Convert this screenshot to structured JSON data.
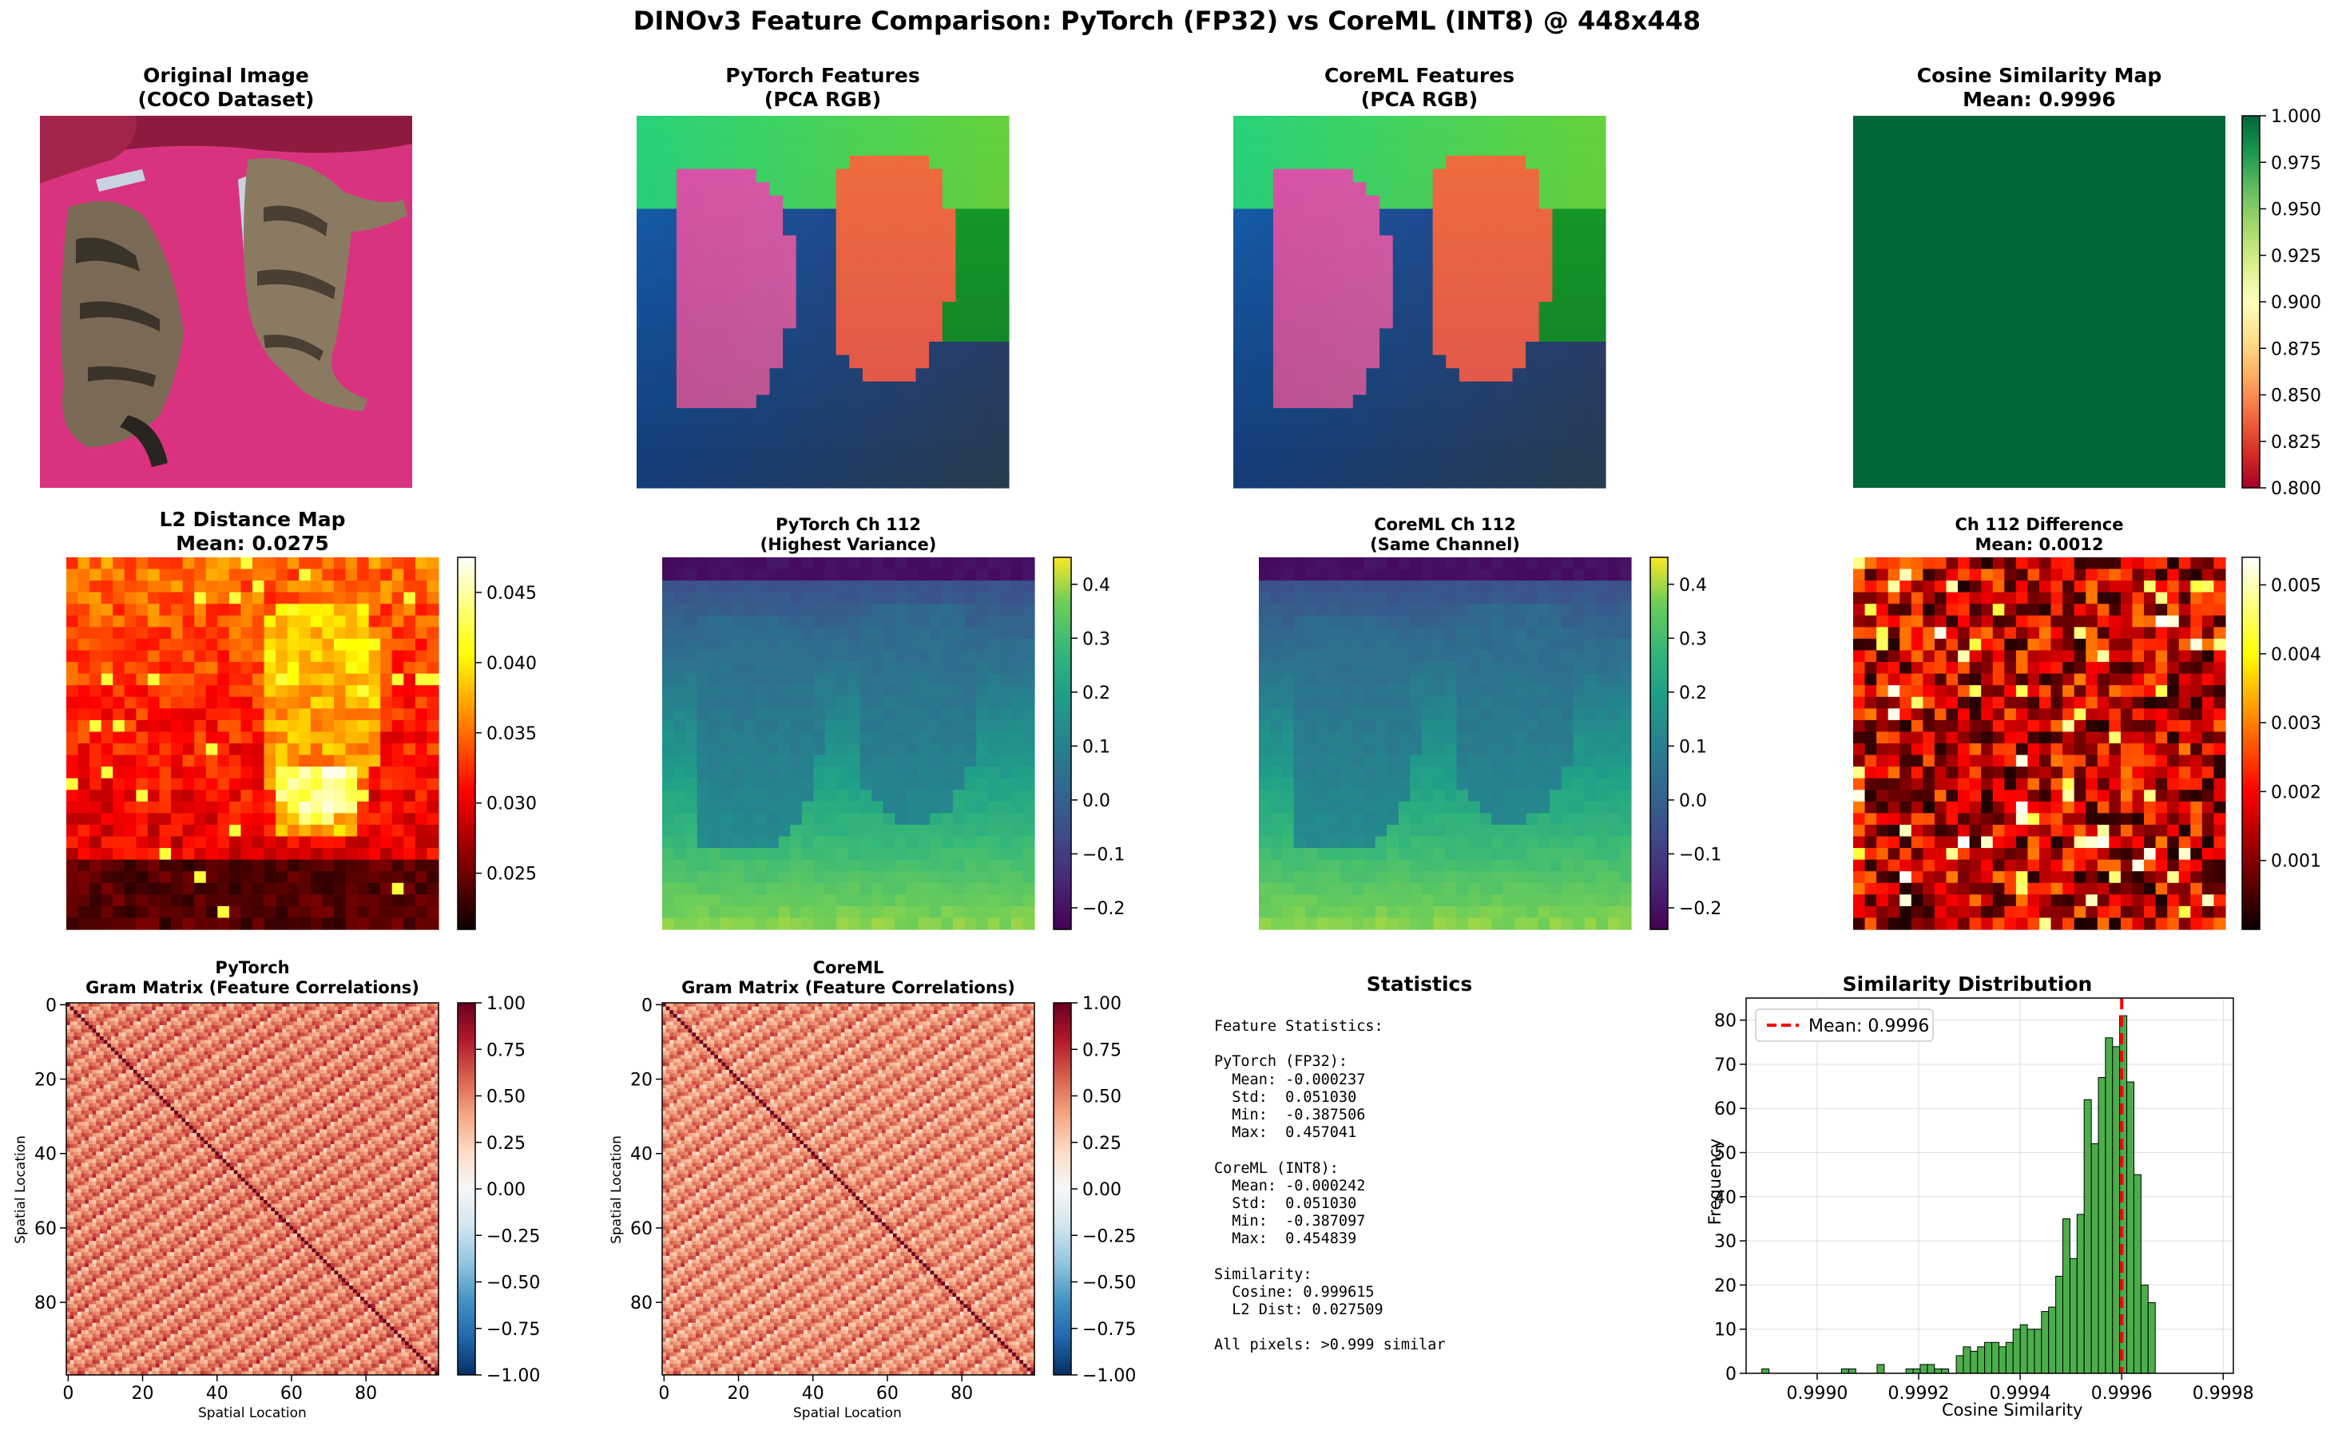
{
  "figure": {
    "title": "DINOv3 Feature Comparison: PyTorch (FP32) vs CoreML (INT8) @ 448x448"
  },
  "panels": {
    "original": {
      "title": "Original Image\n(COCO Dataset)"
    },
    "pytorch_pca": {
      "title": "PyTorch Features\n(PCA RGB)"
    },
    "coreml_pca": {
      "title": "CoreML Features\n(PCA RGB)"
    },
    "cosine_map": {
      "title": "Cosine Similarity Map\nMean: 0.9996",
      "colorbar": {
        "min": 0.8,
        "max": 1.0,
        "ticks": [
          "1.000",
          "0.975",
          "0.950",
          "0.925",
          "0.900",
          "0.875",
          "0.850",
          "0.825",
          "0.800"
        ]
      }
    },
    "l2_map": {
      "title": "L2 Distance Map\nMean: 0.0275",
      "colorbar": {
        "min": 0.021,
        "max": 0.0475,
        "ticks": [
          "0.045",
          "0.040",
          "0.035",
          "0.030",
          "0.025"
        ]
      }
    },
    "pytorch_ch": {
      "title": "PyTorch Ch 112\n(Highest Variance)",
      "colorbar": {
        "min": -0.24,
        "max": 0.45,
        "ticks": [
          "0.4",
          "0.3",
          "0.2",
          "0.1",
          "0.0",
          "−0.1",
          "−0.2"
        ]
      }
    },
    "coreml_ch": {
      "title": "CoreML Ch 112\n(Same Channel)",
      "colorbar": {
        "min": -0.24,
        "max": 0.45,
        "ticks": [
          "0.4",
          "0.3",
          "0.2",
          "0.1",
          "0.0",
          "−0.1",
          "−0.2"
        ]
      }
    },
    "ch_diff": {
      "title": "Ch 112 Difference\nMean: 0.0012",
      "colorbar": {
        "min": 0.0,
        "max": 0.0054,
        "ticks": [
          "0.005",
          "0.004",
          "0.003",
          "0.002",
          "0.001"
        ]
      }
    },
    "gram_pytorch": {
      "title": "PyTorch\nGram Matrix (Feature Correlations)",
      "xlabel": "Spatial Location",
      "ylabel": "Spatial Location",
      "ticks": [
        "0",
        "20",
        "40",
        "60",
        "80"
      ],
      "colorbar": {
        "ticks": [
          "1.00",
          "0.75",
          "0.50",
          "0.25",
          "0.00",
          "−0.25",
          "−0.50",
          "−0.75",
          "−1.00"
        ]
      }
    },
    "gram_coreml": {
      "title": "CoreML\nGram Matrix (Feature Correlations)",
      "xlabel": "Spatial Location",
      "ylabel": "Spatial Location",
      "ticks": [
        "0",
        "20",
        "40",
        "60",
        "80"
      ],
      "colorbar": {
        "ticks": [
          "1.00",
          "0.75",
          "0.50",
          "0.25",
          "0.00",
          "−0.25",
          "−0.50",
          "−0.75",
          "−1.00"
        ]
      }
    },
    "statistics": {
      "title": "Statistics",
      "text": "Feature Statistics:\n\nPyTorch (FP32):\n  Mean: -0.000237\n  Std:  0.051030\n  Min:  -0.387506\n  Max:  0.457041\n\nCoreML (INT8):\n  Mean: -0.000242\n  Std:  0.051030\n  Min:  -0.387097\n  Max:  0.454839\n\nSimilarity:\n  Cosine: 0.999615\n  L2 Dist: 0.027509\n\nAll pixels: >0.999 similar"
    }
  },
  "chart_data": {
    "type": "bar",
    "title": "Similarity Distribution",
    "xlabel": "Cosine Similarity",
    "ylabel": "Frequency",
    "xlim": [
      0.99886,
      0.99982
    ],
    "ylim": [
      0,
      85
    ],
    "xticks": [
      "0.9990",
      "0.9992",
      "0.9994",
      "0.9996",
      "0.9998"
    ],
    "xtick_values": [
      0.999,
      0.9992,
      0.9994,
      0.9996,
      0.9998
    ],
    "yticks": [
      0,
      10,
      20,
      30,
      40,
      50,
      60,
      70,
      80
    ],
    "bar_color": "#2ca02c",
    "mean_line": {
      "value": 0.9996,
      "label": "Mean: 0.9996",
      "color": "#ff0000"
    },
    "legend_position": "upper left",
    "grid": true,
    "bins": [
      {
        "x": 0.998891,
        "count": 1
      },
      {
        "x": 0.999048,
        "count": 1
      },
      {
        "x": 0.999062,
        "count": 1
      },
      {
        "x": 0.999118,
        "count": 2
      },
      {
        "x": 0.999175,
        "count": 1
      },
      {
        "x": 0.999189,
        "count": 1
      },
      {
        "x": 0.999203,
        "count": 2
      },
      {
        "x": 0.999217,
        "count": 2
      },
      {
        "x": 0.999231,
        "count": 1
      },
      {
        "x": 0.999245,
        "count": 1
      },
      {
        "x": 0.999274,
        "count": 4
      },
      {
        "x": 0.999288,
        "count": 6
      },
      {
        "x": 0.999302,
        "count": 5
      },
      {
        "x": 0.999316,
        "count": 6
      },
      {
        "x": 0.99933,
        "count": 7
      },
      {
        "x": 0.999344,
        "count": 7
      },
      {
        "x": 0.999358,
        "count": 6
      },
      {
        "x": 0.999372,
        "count": 7
      },
      {
        "x": 0.999386,
        "count": 10
      },
      {
        "x": 0.9994,
        "count": 11
      },
      {
        "x": 0.999414,
        "count": 10
      },
      {
        "x": 0.999428,
        "count": 10
      },
      {
        "x": 0.999442,
        "count": 14
      },
      {
        "x": 0.999456,
        "count": 15
      },
      {
        "x": 0.99947,
        "count": 22
      },
      {
        "x": 0.999484,
        "count": 35
      },
      {
        "x": 0.999498,
        "count": 26
      },
      {
        "x": 0.999512,
        "count": 36
      },
      {
        "x": 0.999526,
        "count": 62
      },
      {
        "x": 0.99954,
        "count": 52
      },
      {
        "x": 0.999554,
        "count": 67
      },
      {
        "x": 0.999568,
        "count": 76
      },
      {
        "x": 0.999582,
        "count": 74
      },
      {
        "x": 0.999596,
        "count": 81
      },
      {
        "x": 0.99961,
        "count": 66
      },
      {
        "x": 0.999624,
        "count": 45
      },
      {
        "x": 0.999638,
        "count": 20
      },
      {
        "x": 0.999652,
        "count": 16
      }
    ]
  }
}
